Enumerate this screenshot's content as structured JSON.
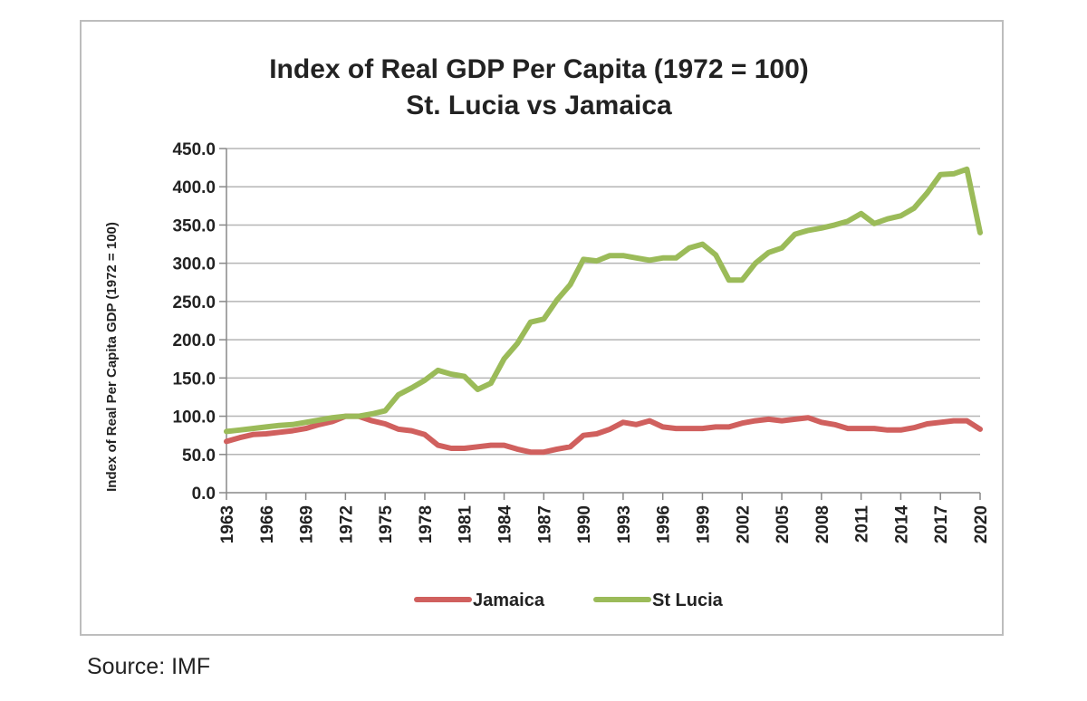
{
  "chart_data": {
    "type": "line",
    "title": "Index of Real GDP Per Capita (1972 = 100)",
    "subtitle": "St. Lucia vs Jamaica",
    "ylabel": "Index of Real Per Capita GDP (1972 = 100)",
    "xlabel": "",
    "ylim": [
      0,
      450
    ],
    "yticks": [
      "0.0",
      "50.0",
      "100.0",
      "150.0",
      "200.0",
      "250.0",
      "300.0",
      "350.0",
      "400.0",
      "450.0"
    ],
    "x": [
      1963,
      1964,
      1965,
      1966,
      1967,
      1968,
      1969,
      1970,
      1971,
      1972,
      1973,
      1974,
      1975,
      1976,
      1977,
      1978,
      1979,
      1980,
      1981,
      1982,
      1983,
      1984,
      1985,
      1986,
      1987,
      1988,
      1989,
      1990,
      1991,
      1992,
      1993,
      1994,
      1995,
      1996,
      1997,
      1998,
      1999,
      2000,
      2001,
      2002,
      2003,
      2004,
      2005,
      2006,
      2007,
      2008,
      2009,
      2010,
      2011,
      2012,
      2013,
      2014,
      2015,
      2016,
      2017,
      2018,
      2019,
      2020
    ],
    "xticks": [
      "1963",
      "1966",
      "1969",
      "1972",
      "1975",
      "1978",
      "1981",
      "1984",
      "1987",
      "1990",
      "1993",
      "1996",
      "1999",
      "2002",
      "2005",
      "2008",
      "2011",
      "2014",
      "2017",
      "2020"
    ],
    "grid": true,
    "legend_position": "bottom",
    "series": [
      {
        "name": "Jamaica",
        "color": "#d0605e",
        "values": [
          67,
          72,
          76,
          77,
          79,
          81,
          84,
          89,
          93,
          100,
          100,
          94,
          90,
          83,
          81,
          76,
          62,
          58,
          58,
          60,
          62,
          62,
          57,
          53,
          53,
          57,
          60,
          75,
          77,
          83,
          92,
          89,
          94,
          86,
          84,
          84,
          84,
          86,
          86,
          91,
          94,
          96,
          94,
          96,
          98,
          92,
          89,
          84,
          84,
          84,
          82,
          82,
          85,
          90,
          92,
          94,
          94,
          83
        ]
      },
      {
        "name": "St Lucia",
        "color": "#9bbb59",
        "values": [
          80,
          82,
          84,
          86,
          88,
          89,
          92,
          95,
          98,
          100,
          100,
          103,
          107,
          128,
          137,
          147,
          160,
          155,
          152,
          135,
          143,
          175,
          195,
          223,
          227,
          252,
          272,
          305,
          303,
          310,
          310,
          307,
          304,
          307,
          307,
          320,
          325,
          311,
          278,
          278,
          300,
          314,
          320,
          338,
          343,
          346,
          350,
          355,
          365,
          352,
          358,
          362,
          372,
          392,
          416,
          417,
          423,
          340
        ]
      }
    ]
  },
  "source": "Source: IMF"
}
